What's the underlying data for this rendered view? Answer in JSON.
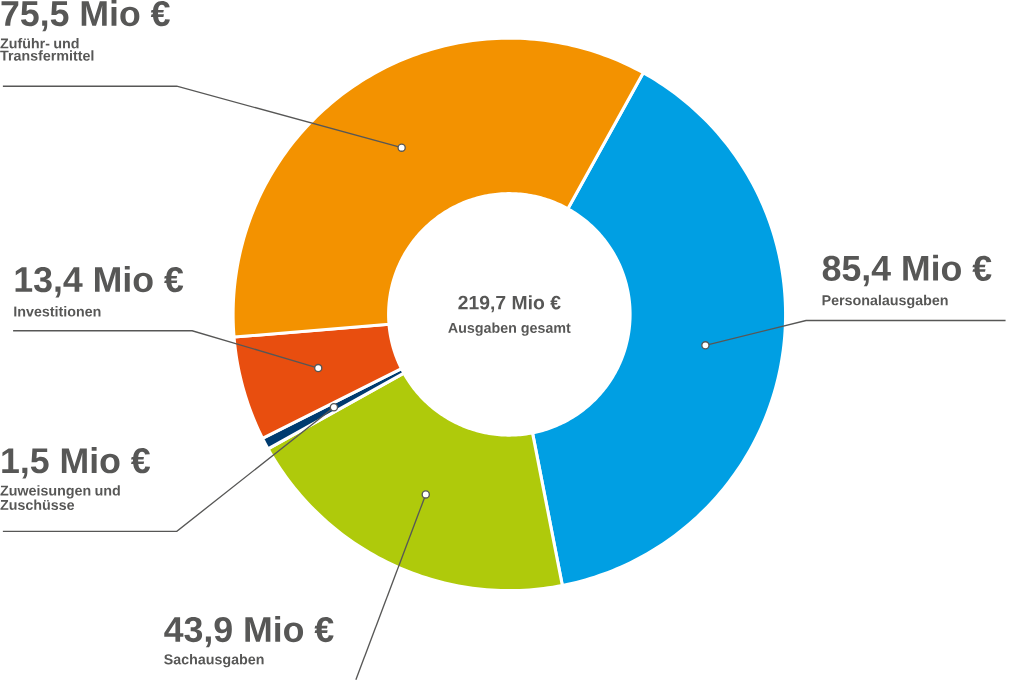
{
  "chart_data": {
    "type": "donut",
    "categories": [
      "Personalausgaben",
      "Sachausgaben",
      "Zuweisungen und Zuschüsse",
      "Investitionen",
      "Zuführ- und Transfermittel"
    ],
    "values": [
      85.4,
      43.9,
      1.5,
      13.4,
      75.5
    ],
    "colors": [
      "#009fe3",
      "#afca0b",
      "#003b6f",
      "#e84e0f",
      "#f39200"
    ],
    "value_labels": [
      "85,4 Mio €",
      "43,9 Mio €",
      "1,5 Mio €",
      "13,4 Mio €",
      "75,5 Mio €"
    ],
    "annotations": [
      "219,7 Mio €",
      "Ausgaben gesamt"
    ]
  }
}
